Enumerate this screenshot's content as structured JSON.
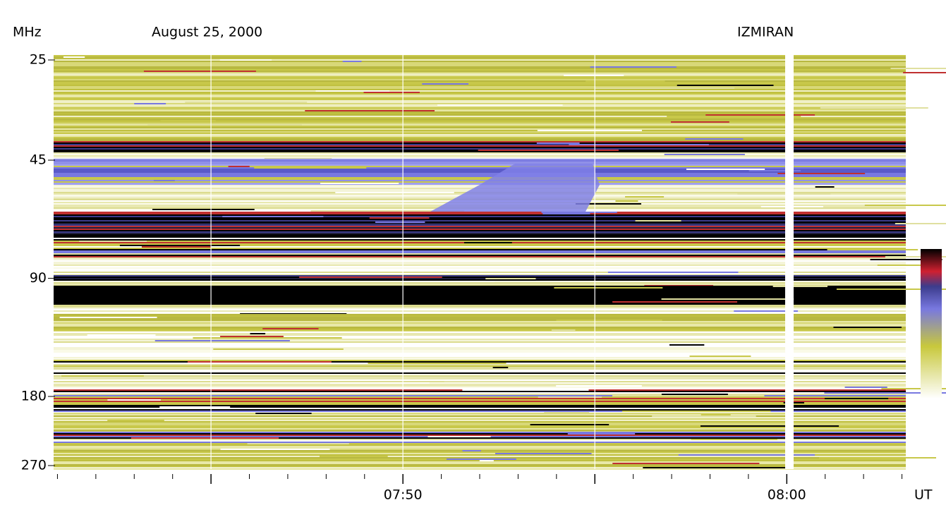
{
  "chart_data": {
    "type": "spectrogram",
    "title": "August 25, 2000",
    "source": "IZMIRAN",
    "y_label": "MHz",
    "x_label": "UT",
    "ylim": [
      25,
      270
    ],
    "ylog": true,
    "yticks": [
      25,
      45,
      90,
      180,
      270
    ],
    "xlim": [
      460.9,
      483.1
    ],
    "xticks": [
      {
        "value": 470,
        "label": "07:50"
      },
      {
        "value": 480,
        "label": "08:00"
      }
    ],
    "xminor_ticks": [
      461,
      462,
      463,
      464,
      465,
      466,
      467,
      468,
      469,
      471,
      472,
      473,
      474,
      475,
      476,
      477,
      478,
      479,
      481,
      482,
      483
    ],
    "grid": true
  }
}
